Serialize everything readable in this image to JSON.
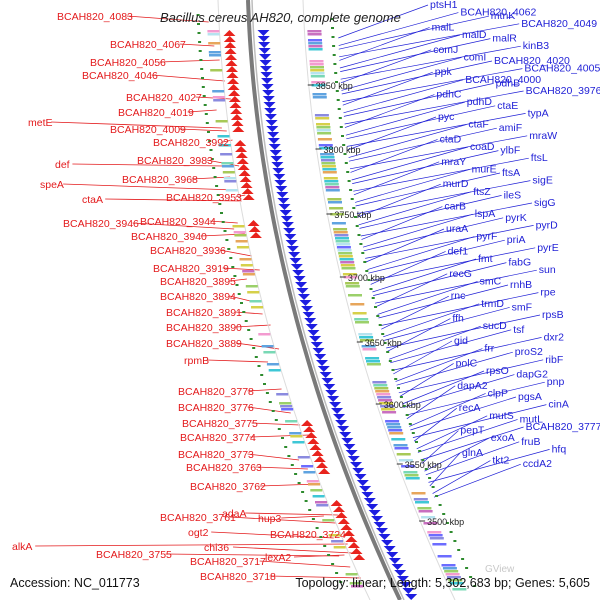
{
  "title": "Bacillus cereus AH820, complete genome",
  "footer": {
    "accession": "Accession: NC_011773",
    "topology": "Topology: linear; Length: 5,302,683 bp; Genes: 5,605"
  },
  "colors": {
    "left_labels": "#e31a1c",
    "right_labels": "#1f1fd6",
    "forward_strand": "#e8231d",
    "reverse_strand": "#1d1de0",
    "backbone": "#7a7a7a",
    "gc_dots": "#2e8b2e"
  },
  "ticks": [
    {
      "label": "3500 kbp"
    },
    {
      "label": "3550 kbp"
    },
    {
      "label": "3600 kbp"
    },
    {
      "label": "3650 kbp"
    },
    {
      "label": "3700 kbp"
    },
    {
      "label": "3750 kbp"
    },
    {
      "label": "3800 kbp"
    },
    {
      "label": "3850 kbp"
    }
  ],
  "left_genes": [
    "BCAH820_4083",
    "BCAH820_4067",
    "BCAH820_4056",
    "BCAH820_4046",
    "BCAH820_4027",
    "BCAH820_4019",
    "metE",
    "BCAH820_4009",
    "BCAH820_3992",
    "BCAH820_3983",
    "def",
    "BCAH820_3968",
    "speA",
    "ctaA",
    "BCAH820_3953",
    "BCAH820_3946",
    "BCAH820_3944",
    "BCAH820_3940",
    "BCAH820_3936",
    "BCAH820_3919",
    "BCAH820_3895",
    "BCAH820_3894",
    "BCAH820_3891",
    "BCAH820_3890",
    "BCAH820_3889",
    "rpmB",
    "BCAH820_3778",
    "BCAH820_3776",
    "BCAH820_3775",
    "BCAH820_3774",
    "BCAH820_3773",
    "BCAH820_3763",
    "BCAH820_3762",
    "BCAH820_3761",
    "adaA",
    "hup3",
    "ogt2",
    "BCAH820_3724",
    "alkA",
    "chi36",
    "BCAH820_3755",
    "lexA2",
    "BCAH820_3717",
    "BCAH820_3718"
  ],
  "right_genes": [
    "ptsH1",
    "BCAH820_4062",
    "mtnK",
    "BCAH820_4049",
    "malL",
    "malD",
    "malR",
    "kinB3",
    "comJ",
    "comI",
    "BCAH820_4020",
    "BCAH820_4005",
    "ppk",
    "BCAH820_4000",
    "pdhB",
    "BCAH820_3976",
    "pdhC",
    "pdhD",
    "ctaE",
    "typA",
    "pyc",
    "ctaF",
    "amiF",
    "mraW",
    "ctaD",
    "coaD",
    "ylbF",
    "ftsL",
    "mraY",
    "murE",
    "ftsA",
    "sigE",
    "murD",
    "ftsZ",
    "ileS",
    "sigG",
    "carB",
    "lspA",
    "pyrK",
    "pyrD",
    "uraA",
    "pyrF",
    "priA",
    "pyrE",
    "def1",
    "fmt",
    "fabG",
    "sun",
    "recG",
    "smC",
    "rnhB",
    "rpe",
    "rnc",
    "trmD",
    "smF",
    "rpsB",
    "ffh",
    "sucD",
    "tsf",
    "dxr2",
    "gid",
    "frr",
    "proS2",
    "ribF",
    "polC",
    "rpsO",
    "dapG2",
    "pnp",
    "dapA2",
    "clpP",
    "pgsA",
    "cinA",
    "recA",
    "mutS",
    "mutL",
    "BCAH820_3777",
    "pepT",
    "exoA",
    "fruB",
    "hfq",
    "glnA",
    "tkt2",
    "ccdA2"
  ],
  "watermark": "GView"
}
